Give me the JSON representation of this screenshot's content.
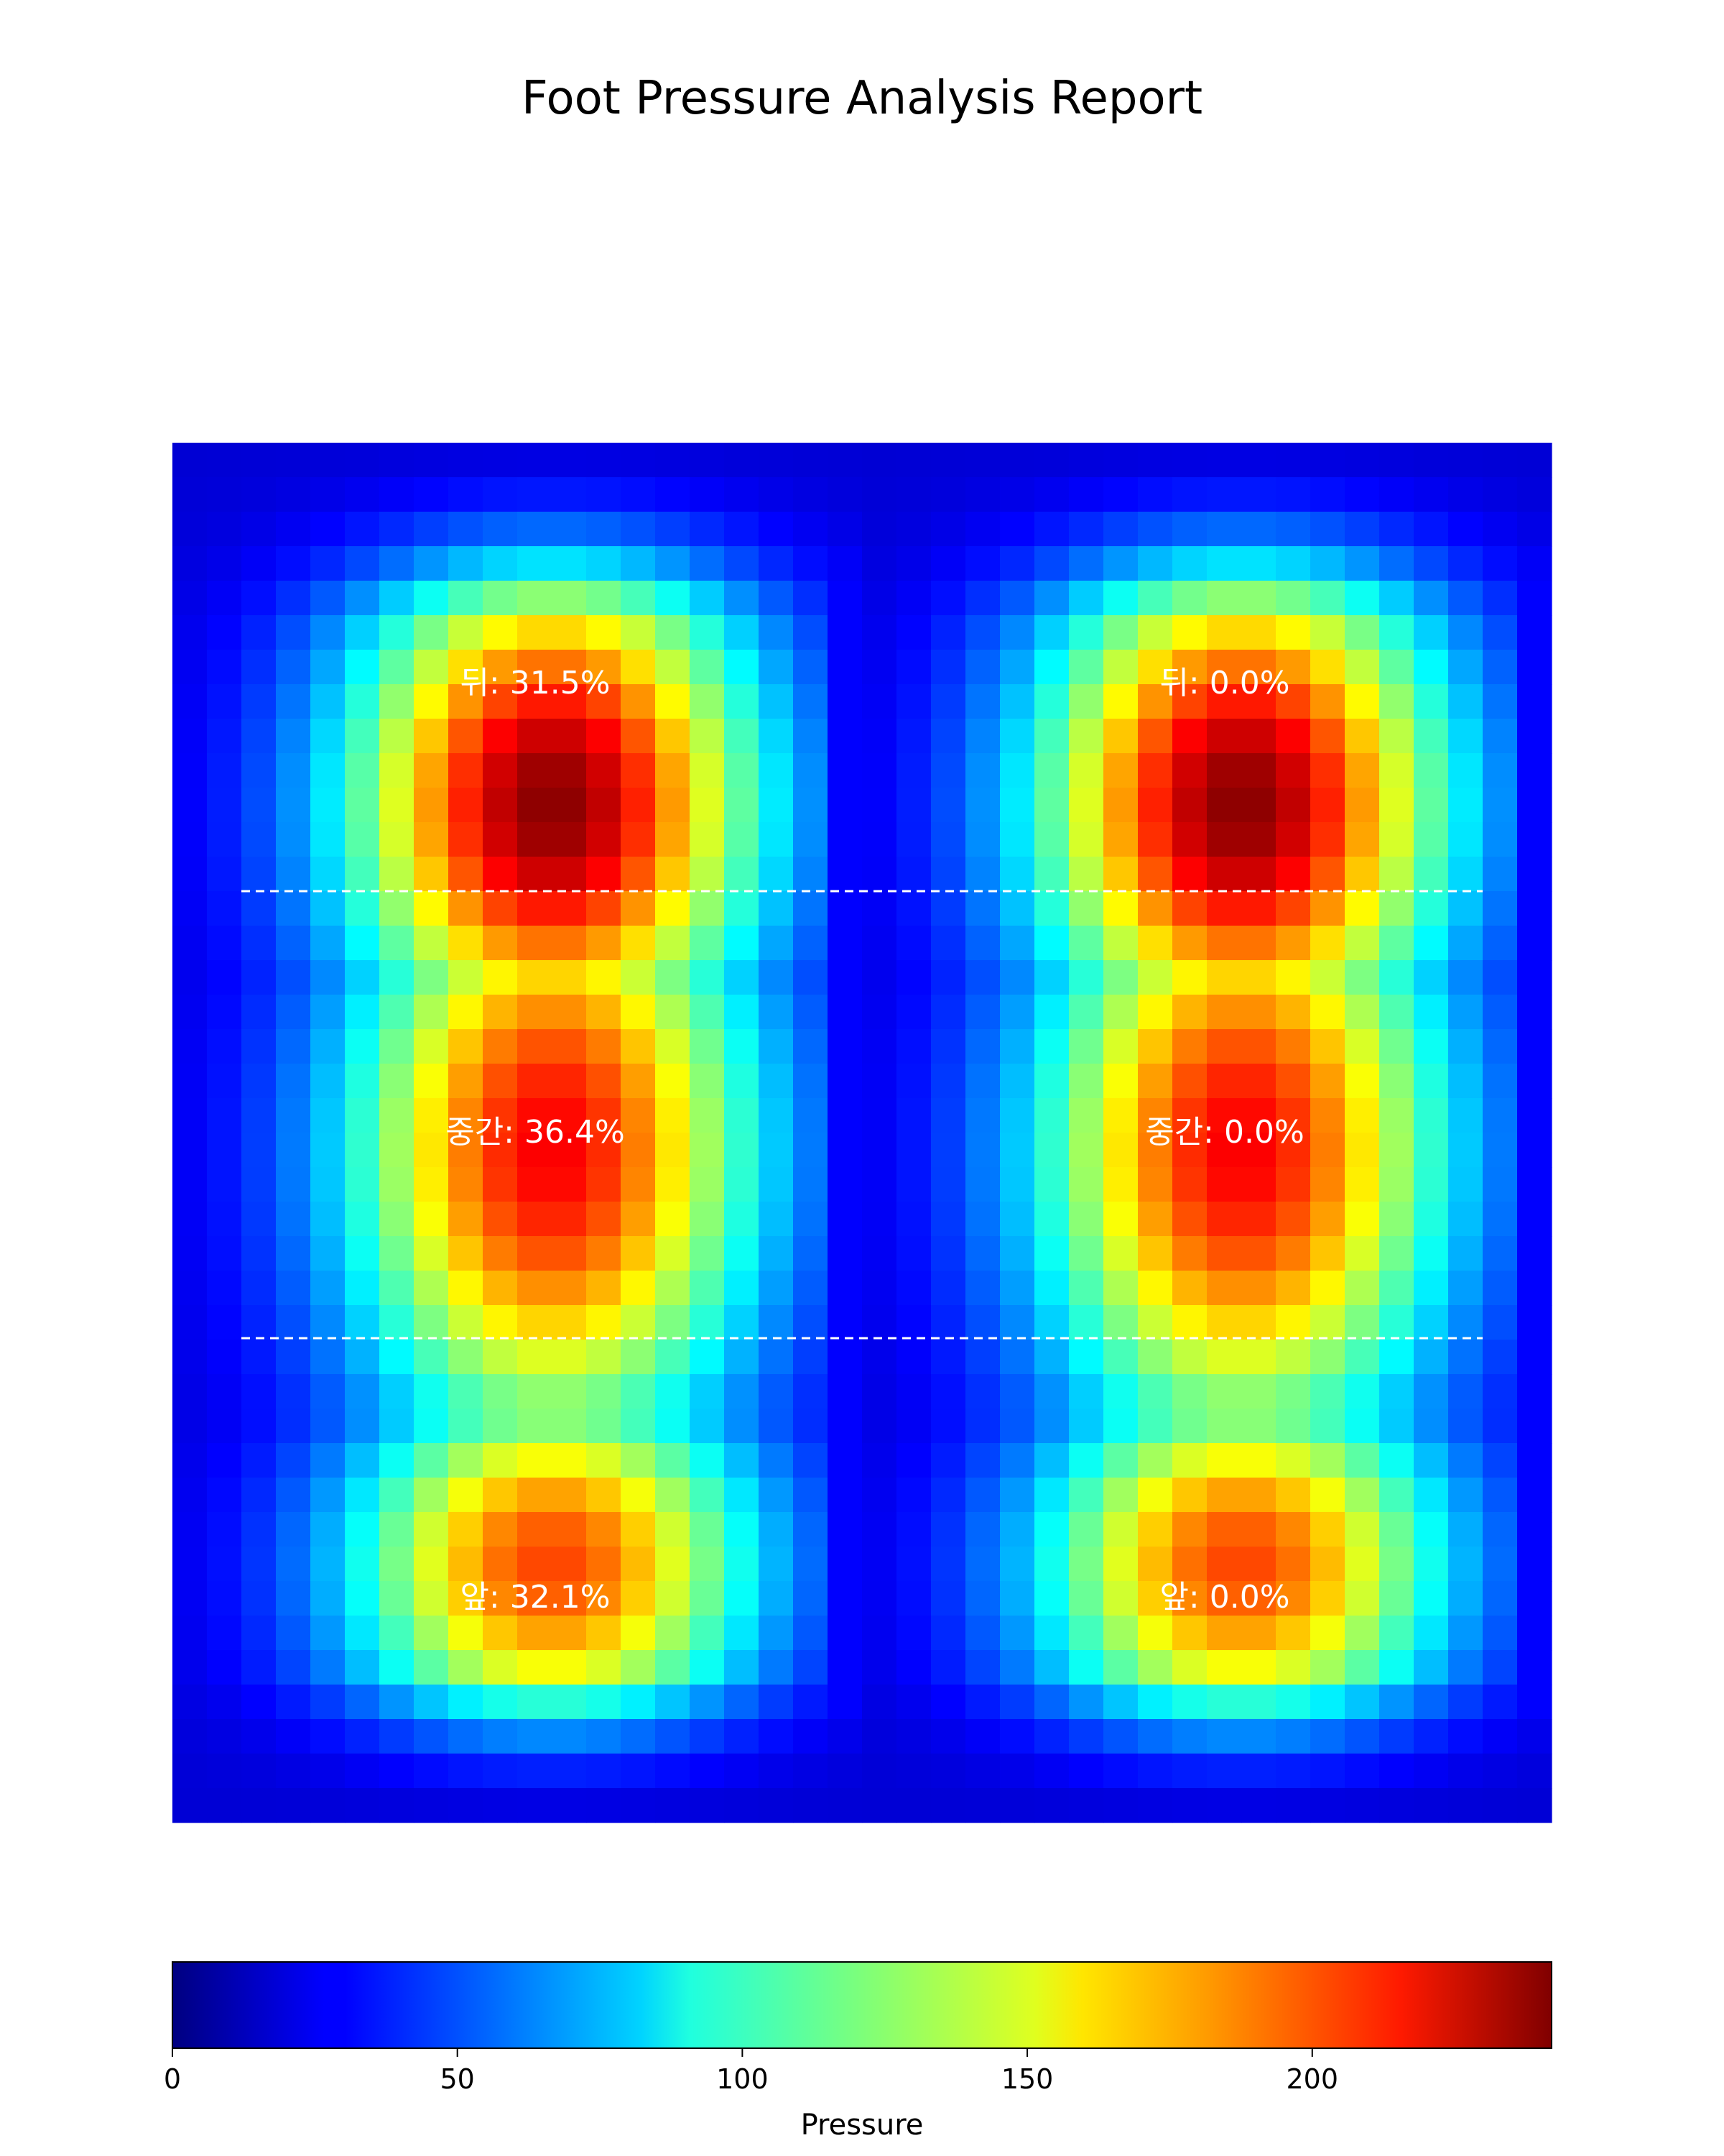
{
  "chart_data": {
    "type": "heatmap",
    "title": "Foot Pressure Analysis Report",
    "colormap": "jet",
    "grid": false,
    "value_range": [
      0,
      242
    ],
    "grid_size": {
      "rows": 40,
      "cols": 40
    },
    "feet": [
      {
        "name": "left",
        "region_labels": [
          "뒤: 31.5%",
          "중간: 36.4%",
          "앞: 32.1%"
        ],
        "peak_heel": 240,
        "peak_forefoot": 190
      },
      {
        "name": "right",
        "region_labels": [
          "뒤: 0.0%",
          "중간: 0.0%",
          "앞: 0.0%"
        ],
        "peak_heel": 240,
        "peak_forefoot": 190
      }
    ],
    "region_dividers": "dashed-white-horizontal",
    "colorbar": {
      "label": "Pressure",
      "ticks": [
        "0",
        "50",
        "100",
        "150",
        "200"
      ],
      "tick_values": [
        0,
        50,
        100,
        150,
        200
      ],
      "range": [
        0,
        242
      ]
    }
  }
}
